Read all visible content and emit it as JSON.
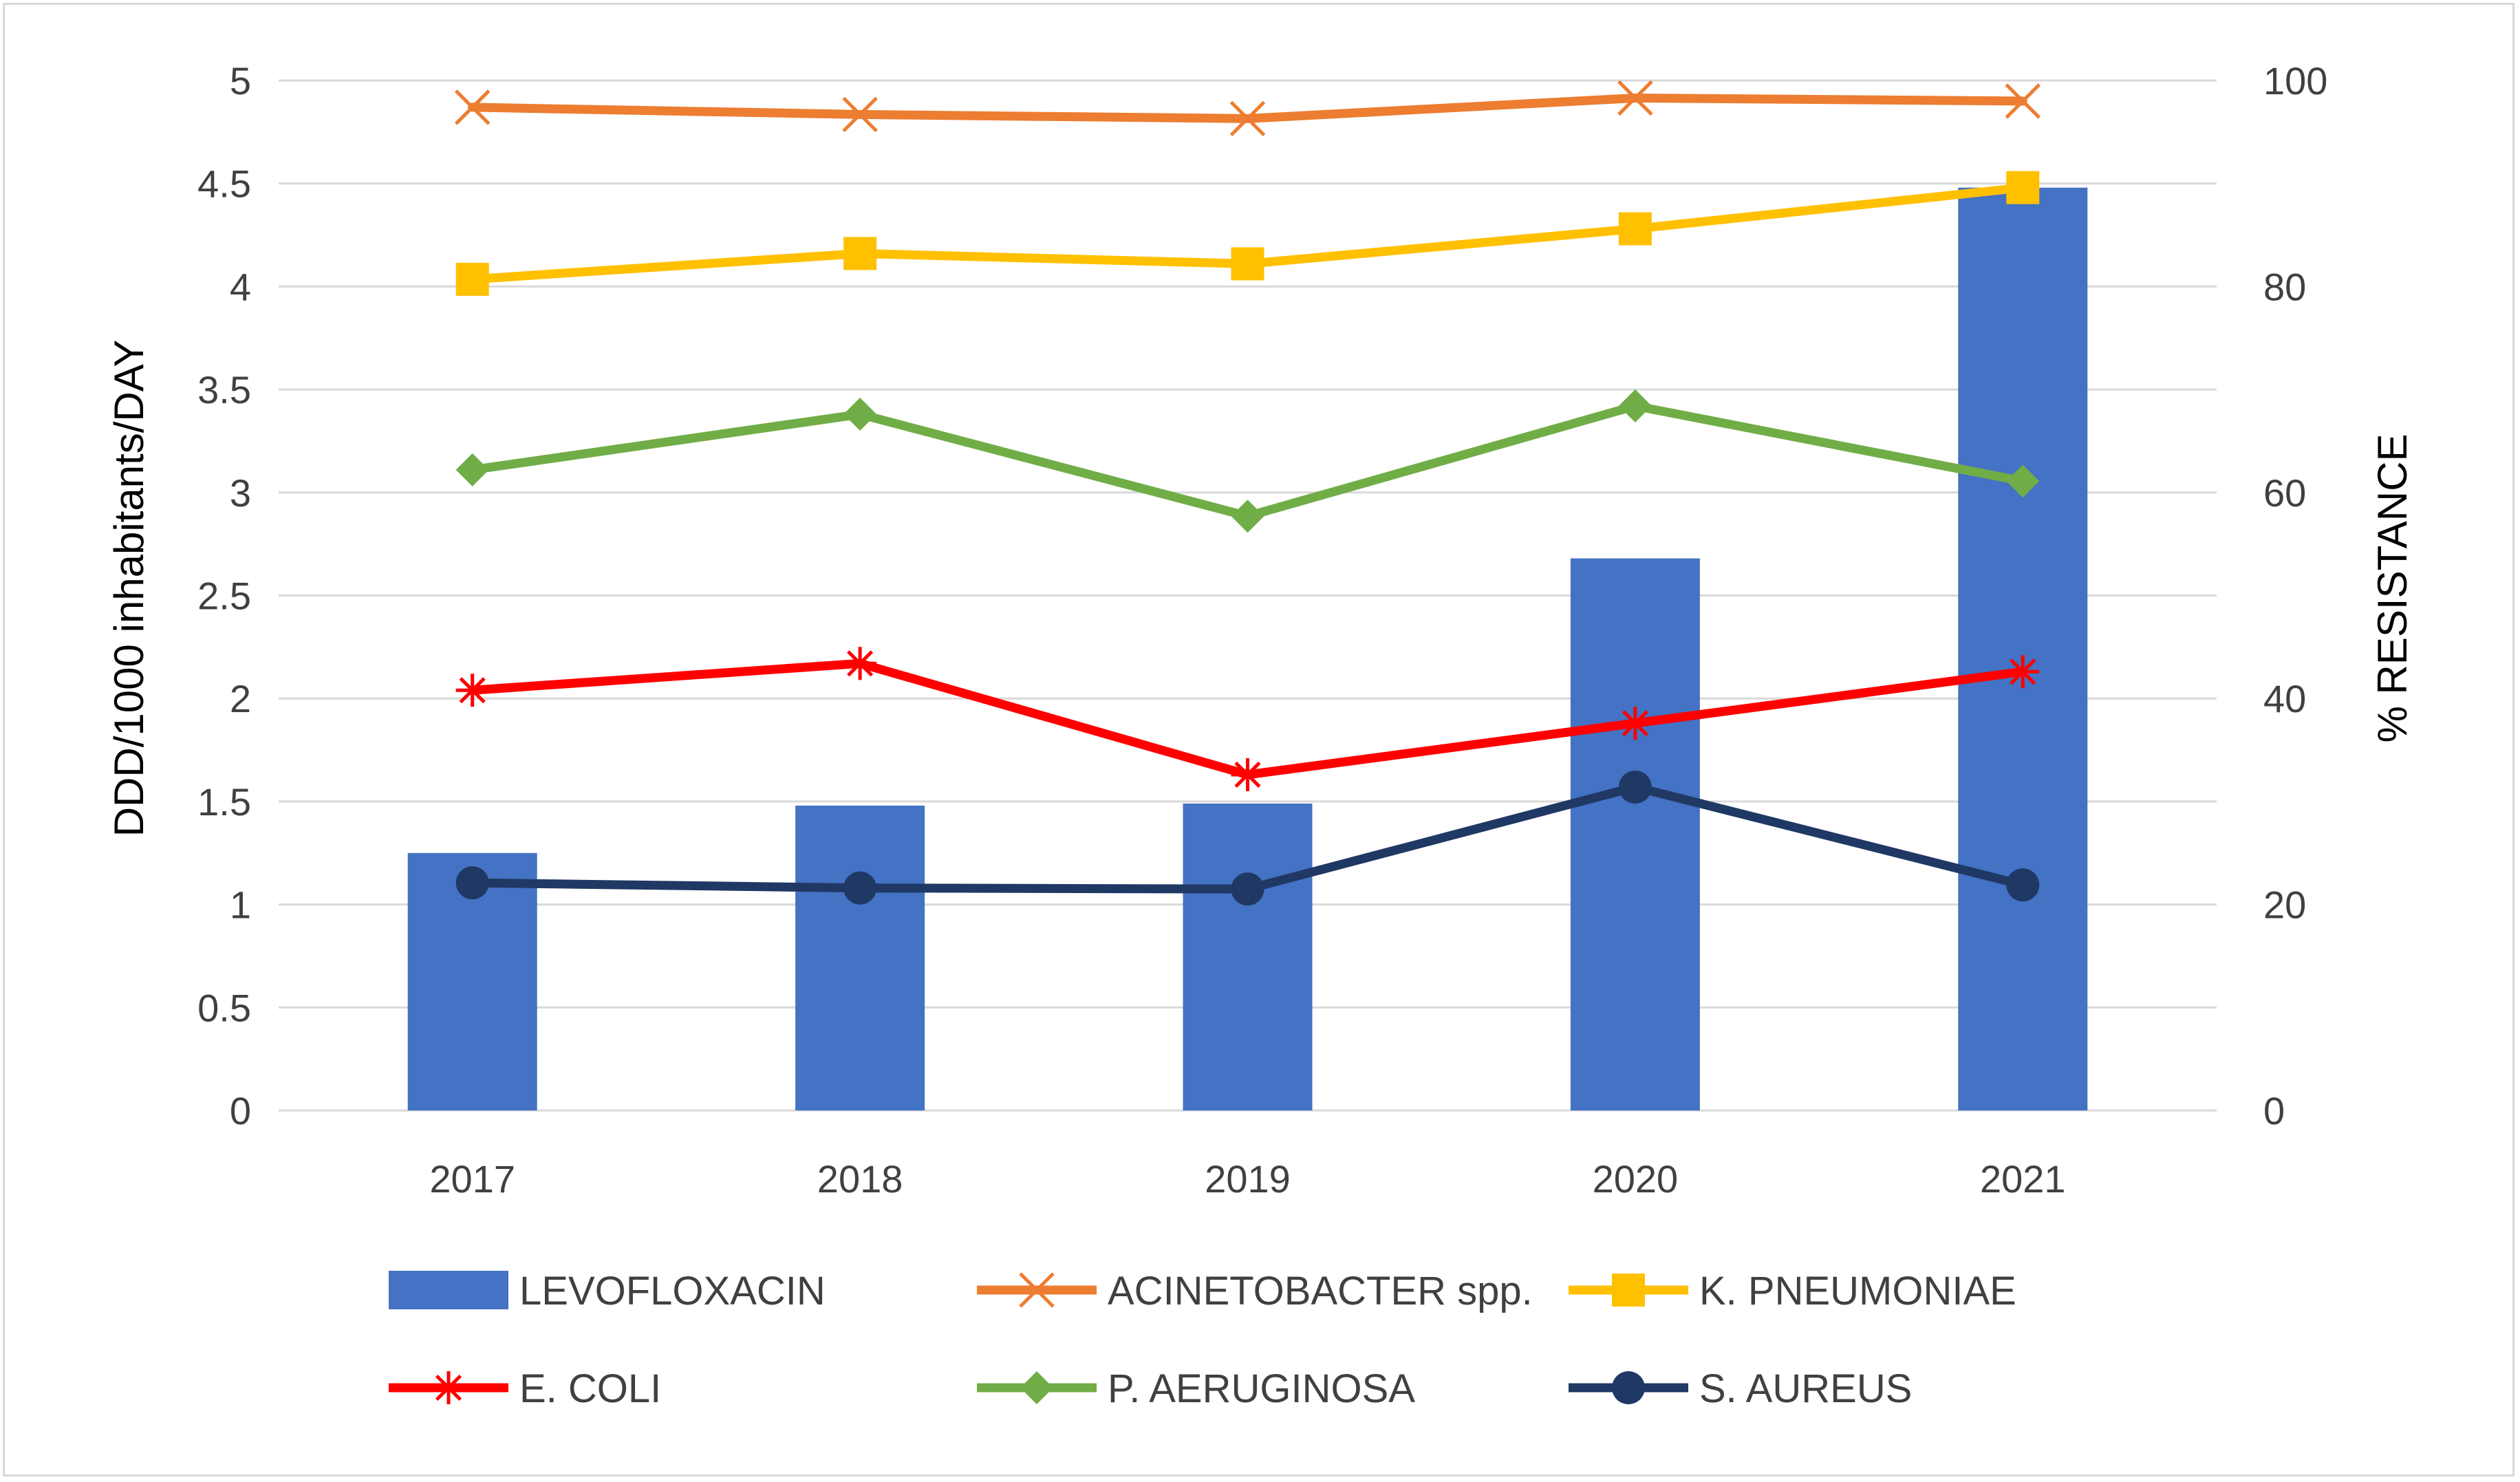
{
  "chart_data": {
    "type": "bar+line",
    "categories": [
      "2017",
      "2018",
      "2019",
      "2020",
      "2021"
    ],
    "bar_series": {
      "name": "LEVOFLOXACIN",
      "axis": "left",
      "color": "#4472c4",
      "values": [
        1.25,
        1.48,
        1.49,
        2.68,
        4.48
      ]
    },
    "line_series": [
      {
        "name": "ACINETOBACTER spp.",
        "axis": "right",
        "color": "#ed7d31",
        "marker": "x",
        "values": [
          97.4,
          96.7,
          96.3,
          98.3,
          98.0
        ]
      },
      {
        "name": "K. PNEUMONIAE",
        "axis": "right",
        "color": "#ffc000",
        "marker": "square",
        "values": [
          80.7,
          83.2,
          82.2,
          85.6,
          89.6
        ]
      },
      {
        "name": "E. COLI",
        "axis": "right",
        "color": "#ff0000",
        "marker": "star",
        "values": [
          40.8,
          43.4,
          32.6,
          37.6,
          42.6
        ]
      },
      {
        "name": "P. AERUGINOSA",
        "axis": "right",
        "color": "#70ad47",
        "marker": "diamond",
        "values": [
          62.2,
          67.6,
          57.7,
          68.4,
          61.1
        ]
      },
      {
        "name": "S. AUREUS",
        "axis": "right",
        "color": "#203864",
        "marker": "circle",
        "values": [
          22.1,
          21.6,
          21.5,
          31.4,
          21.9
        ]
      }
    ],
    "ylabel_left": "DDD/1000 inhabitants/DAY",
    "ylabel_right": "% RESISTANCE",
    "ylim_left": [
      0,
      5
    ],
    "ylim_right": [
      0,
      100
    ],
    "yticks_left": [
      "0",
      "0.5",
      "1",
      "1.5",
      "2",
      "2.5",
      "3",
      "3.5",
      "4",
      "4.5",
      "5"
    ],
    "yticks_right": [
      "0",
      "20",
      "40",
      "60",
      "80",
      "100"
    ],
    "grid": true,
    "legend_position": "bottom"
  }
}
